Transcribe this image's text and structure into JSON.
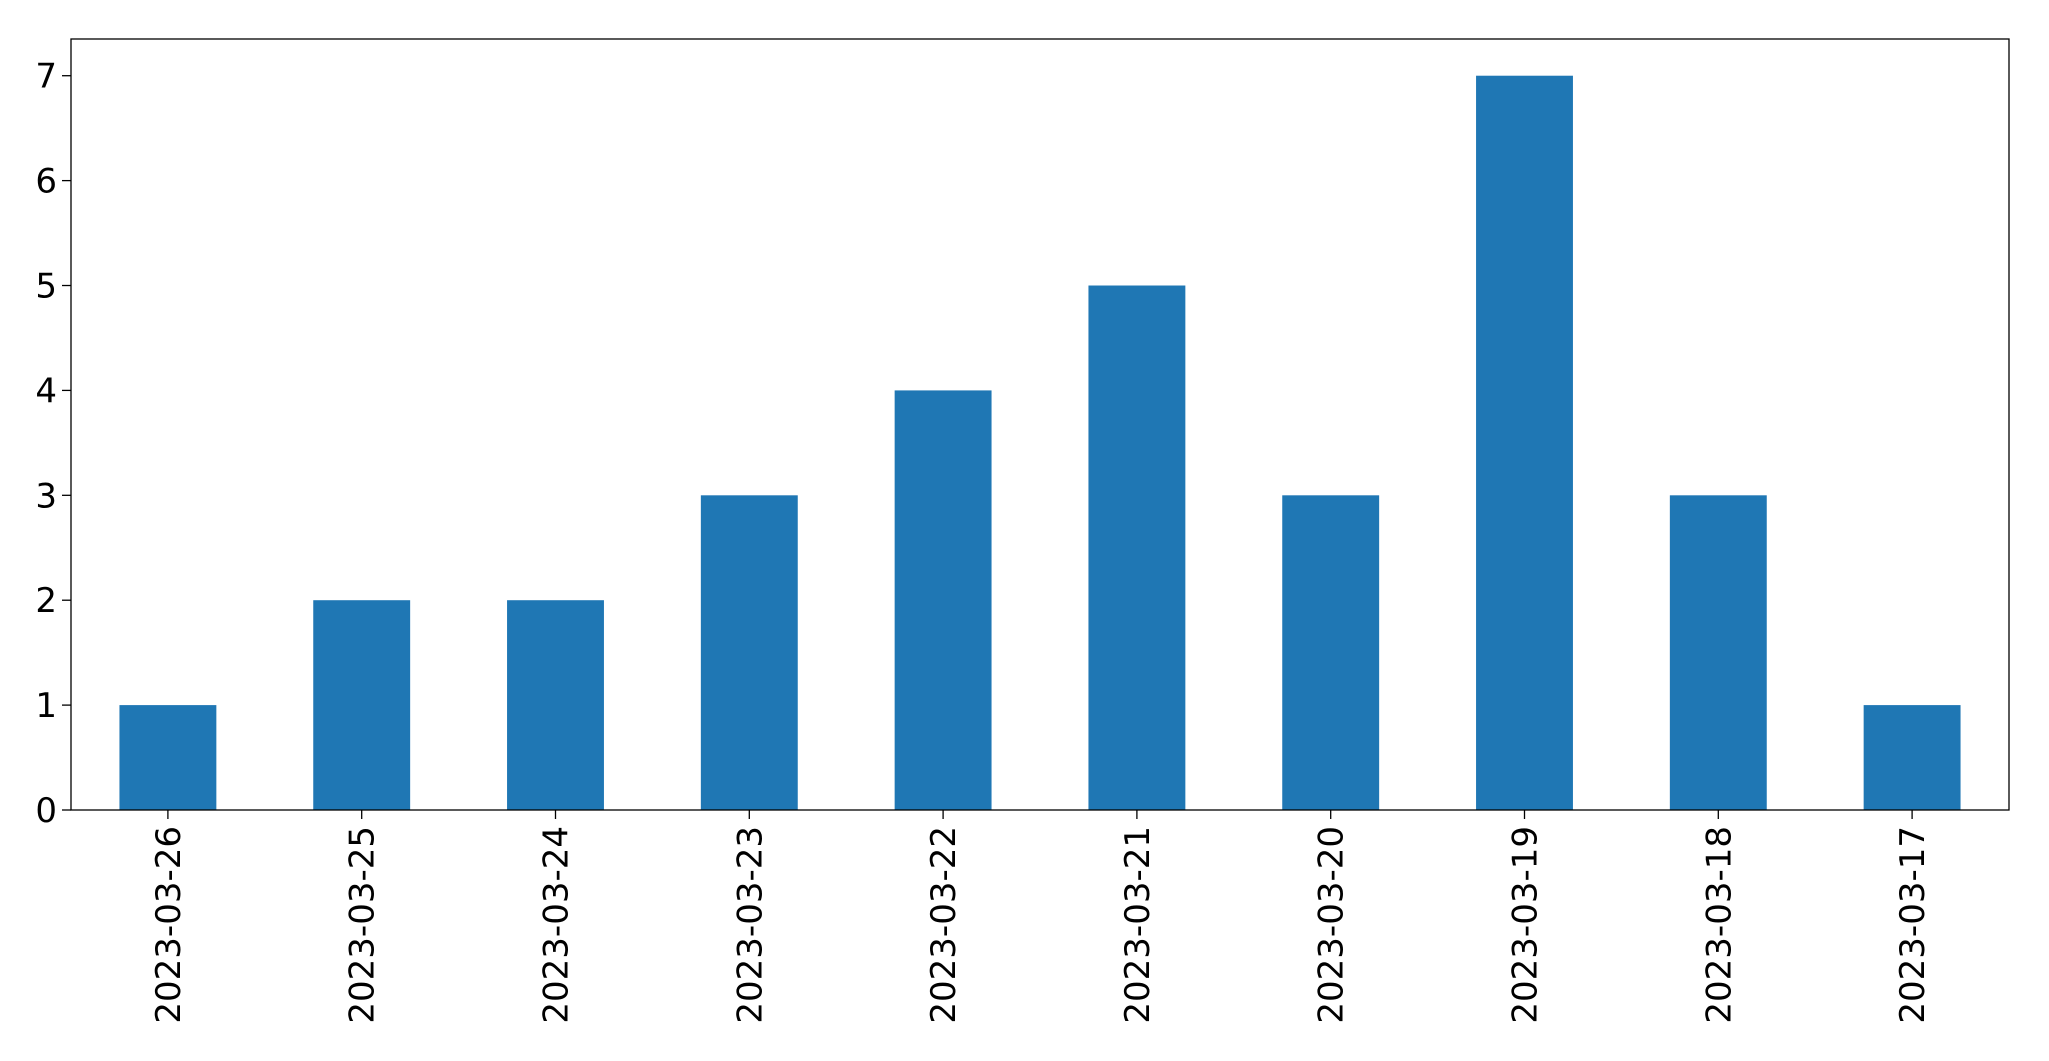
{
  "chart_data": {
    "type": "bar",
    "categories": [
      "2023-03-26",
      "2023-03-25",
      "2023-03-24",
      "2023-03-23",
      "2023-03-22",
      "2023-03-21",
      "2023-03-20",
      "2023-03-19",
      "2023-03-18",
      "2023-03-17"
    ],
    "values": [
      1,
      2,
      2,
      3,
      4,
      5,
      3,
      7,
      3,
      1
    ],
    "color": "#1f77b4",
    "ylim": [
      0,
      7.35
    ],
    "yticks": [
      0,
      1,
      2,
      3,
      4,
      5,
      6,
      7
    ],
    "grid": false
  }
}
